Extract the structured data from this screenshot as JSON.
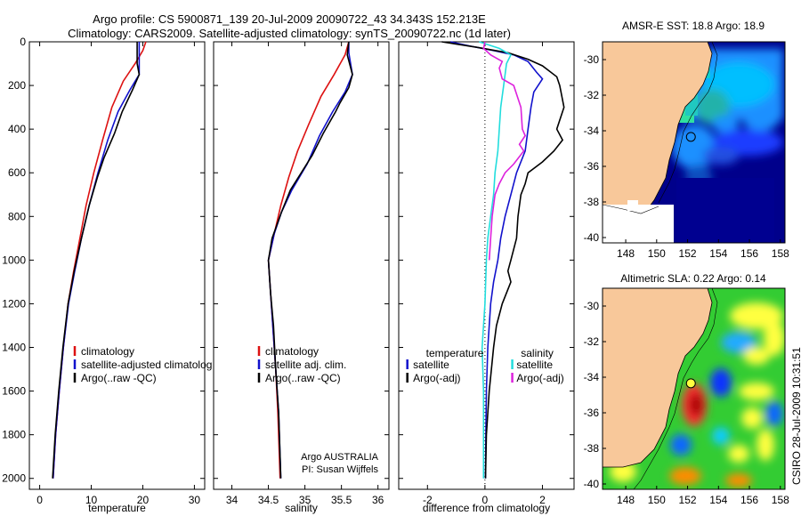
{
  "header": {
    "line1": "Argo profile: CS 5900871_139 20-Jul-2009 20090722_43 34.343S 152.213E",
    "line2": "Climatology: CARS2009. Satellite-adjusted climatology: synTS_20090722.nc (1d later)"
  },
  "footer_stamp": "CSIRO 28-Jul-2009 10:31:51",
  "colors": {
    "red": "#dd1111",
    "blue": "#1111cc",
    "black": "#000000",
    "cyan": "#22dddd",
    "magenta": "#dd22dd",
    "land": "#f8c89a"
  },
  "chart_data": [
    {
      "id": "temperature",
      "type": "line",
      "xlabel": "temperature",
      "ylabel": "",
      "xlim": [
        -2,
        32
      ],
      "ylim": [
        2050,
        0
      ],
      "xticks": [
        0,
        10,
        20,
        30
      ],
      "yticks": [
        0,
        200,
        400,
        600,
        800,
        1000,
        1200,
        1400,
        1600,
        1800,
        2000
      ],
      "legend": [
        "climatology",
        "satellite-adjusted climatolog",
        "Argo(..raw -QC)"
      ],
      "series": [
        {
          "name": "climatology",
          "color": "red",
          "points": [
            [
              20.6,
              0
            ],
            [
              20.0,
              40
            ],
            [
              18.5,
              100
            ],
            [
              16.2,
              180
            ],
            [
              14.0,
              300
            ],
            [
              12.2,
              450
            ],
            [
              10.5,
              600
            ],
            [
              9.0,
              750
            ],
            [
              7.8,
              900
            ],
            [
              6.6,
              1050
            ],
            [
              5.5,
              1200
            ],
            [
              4.6,
              1400
            ],
            [
              3.8,
              1600
            ],
            [
              3.1,
              1800
            ],
            [
              2.6,
              2000
            ]
          ]
        },
        {
          "name": "satellite-adjusted climatology",
          "color": "blue",
          "points": [
            [
              19.3,
              0
            ],
            [
              19.3,
              60
            ],
            [
              19.3,
              150
            ],
            [
              17.5,
              220
            ],
            [
              15.2,
              320
            ],
            [
              13.2,
              450
            ],
            [
              11.3,
              600
            ],
            [
              9.6,
              750
            ],
            [
              8.1,
              900
            ],
            [
              6.8,
              1050
            ],
            [
              5.6,
              1200
            ],
            [
              4.6,
              1400
            ],
            [
              3.8,
              1600
            ],
            [
              3.1,
              1800
            ],
            [
              2.6,
              2000
            ]
          ]
        },
        {
          "name": "Argo(..raw -QC)",
          "color": "black",
          "points": [
            [
              18.9,
              0
            ],
            [
              18.9,
              100
            ],
            [
              19.3,
              150
            ],
            [
              18.0,
              220
            ],
            [
              16.0,
              320
            ],
            [
              14.5,
              420
            ],
            [
              12.5,
              530
            ],
            [
              11.2,
              620
            ],
            [
              9.6,
              750
            ],
            [
              8.1,
              900
            ],
            [
              6.7,
              1050
            ],
            [
              5.5,
              1200
            ],
            [
              4.5,
              1400
            ],
            [
              3.7,
              1600
            ],
            [
              3.0,
              1800
            ],
            [
              2.5,
              2000
            ]
          ]
        }
      ]
    },
    {
      "id": "salinity",
      "type": "line",
      "xlabel": "salinity",
      "ylabel": "",
      "xlim": [
        33.75,
        36.15
      ],
      "ylim": [
        2050,
        0
      ],
      "xticks": [
        34,
        34.5,
        35,
        35.5,
        36
      ],
      "xtick_labels": [
        "34",
        "34.5",
        "35",
        "35.5",
        "36"
      ],
      "yticks": [
        0,
        200,
        400,
        600,
        800,
        1000,
        1200,
        1400,
        1600,
        1800,
        2000
      ],
      "legend": [
        "climatology",
        "satellite adj. clim.",
        "Argo(..raw -QC)"
      ],
      "annotations": [
        "Argo AUSTRALIA",
        "PI: Susan Wijffels"
      ],
      "series": [
        {
          "name": "climatology",
          "color": "red",
          "points": [
            [
              35.6,
              0
            ],
            [
              35.55,
              60
            ],
            [
              35.4,
              150
            ],
            [
              35.22,
              250
            ],
            [
              35.05,
              380
            ],
            [
              34.9,
              500
            ],
            [
              34.78,
              620
            ],
            [
              34.67,
              750
            ],
            [
              34.58,
              880
            ],
            [
              34.5,
              1000
            ],
            [
              34.52,
              1100
            ],
            [
              34.56,
              1300
            ],
            [
              34.6,
              1500
            ],
            [
              34.63,
              1700
            ],
            [
              34.66,
              2000
            ]
          ]
        },
        {
          "name": "satellite adj. clim.",
          "color": "blue",
          "points": [
            [
              35.6,
              0
            ],
            [
              35.6,
              50
            ],
            [
              35.65,
              150
            ],
            [
              35.55,
              230
            ],
            [
              35.38,
              320
            ],
            [
              35.2,
              430
            ],
            [
              35.03,
              560
            ],
            [
              34.82,
              680
            ],
            [
              34.68,
              780
            ],
            [
              34.58,
              880
            ],
            [
              34.5,
              1000
            ],
            [
              34.52,
              1100
            ],
            [
              34.56,
              1300
            ],
            [
              34.6,
              1500
            ],
            [
              34.64,
              1700
            ],
            [
              34.67,
              2000
            ]
          ]
        },
        {
          "name": "Argo(..raw -QC)",
          "color": "black",
          "points": [
            [
              35.6,
              0
            ],
            [
              35.58,
              60
            ],
            [
              35.65,
              150
            ],
            [
              35.6,
              210
            ],
            [
              35.48,
              280
            ],
            [
              35.42,
              320
            ],
            [
              35.25,
              420
            ],
            [
              35.1,
              520
            ],
            [
              34.95,
              600
            ],
            [
              34.8,
              680
            ],
            [
              34.68,
              780
            ],
            [
              34.55,
              900
            ],
            [
              34.5,
              1000
            ],
            [
              34.53,
              1150
            ],
            [
              34.57,
              1300
            ],
            [
              34.6,
              1500
            ],
            [
              34.64,
              1700
            ],
            [
              34.67,
              2000
            ]
          ]
        }
      ]
    },
    {
      "id": "difference",
      "type": "line",
      "xlabel": "difference from climatology",
      "ylabel": "",
      "xlim": [
        -3,
        3.1
      ],
      "ylim": [
        2050,
        0
      ],
      "xticks": [
        -2,
        0,
        2
      ],
      "yticks": [
        0,
        200,
        400,
        600,
        800,
        1000,
        1200,
        1400,
        1600,
        1800,
        2000
      ],
      "legend_temperature_heading": "temperature",
      "legend_salinity_heading": "salinity",
      "legend_temperature": [
        "satellite",
        "Argo(-adj)"
      ],
      "legend_salinity": [
        "satellite",
        "Argo(-adj)"
      ],
      "series": [
        {
          "name": "temperature satellite",
          "color": "blue",
          "points": [
            [
              -1.2,
              0
            ],
            [
              -0.5,
              20
            ],
            [
              0.3,
              40
            ],
            [
              1.0,
              60
            ],
            [
              1.5,
              90
            ],
            [
              1.8,
              140
            ],
            [
              2.0,
              170
            ],
            [
              1.7,
              230
            ],
            [
              1.6,
              300
            ],
            [
              1.5,
              400
            ],
            [
              1.4,
              500
            ],
            [
              1.1,
              600
            ],
            [
              0.9,
              700
            ],
            [
              0.7,
              800
            ],
            [
              0.55,
              900
            ],
            [
              0.45,
              1000
            ],
            [
              0.3,
              1100
            ],
            [
              0.2,
              1200
            ],
            [
              0.1,
              1400
            ],
            [
              0.05,
              1600
            ],
            [
              0.03,
              1800
            ],
            [
              0.02,
              2000
            ]
          ]
        },
        {
          "name": "temperature Argo(-adj)",
          "color": "black",
          "points": [
            [
              -1.5,
              0
            ],
            [
              -0.3,
              25
            ],
            [
              0.8,
              50
            ],
            [
              1.5,
              80
            ],
            [
              2.0,
              110
            ],
            [
              2.5,
              160
            ],
            [
              2.6,
              200
            ],
            [
              2.75,
              300
            ],
            [
              2.5,
              400
            ],
            [
              2.7,
              450
            ],
            [
              2.4,
              500
            ],
            [
              2.0,
              550
            ],
            [
              1.5,
              600
            ],
            [
              1.4,
              650
            ],
            [
              1.25,
              700
            ],
            [
              1.15,
              800
            ],
            [
              1.1,
              900
            ],
            [
              0.9,
              1000
            ],
            [
              0.8,
              1050
            ],
            [
              0.9,
              1100
            ],
            [
              0.6,
              1200
            ],
            [
              0.4,
              1300
            ],
            [
              0.3,
              1400
            ],
            [
              0.15,
              1600
            ],
            [
              0.05,
              1800
            ],
            [
              0.02,
              2000
            ]
          ]
        },
        {
          "name": "salinity satellite",
          "color": "cyan",
          "points": [
            [
              -0.2,
              0
            ],
            [
              0.5,
              30
            ],
            [
              0.9,
              60
            ],
            [
              0.75,
              100
            ],
            [
              0.65,
              200
            ],
            [
              0.55,
              300
            ],
            [
              0.5,
              400
            ],
            [
              0.45,
              500
            ],
            [
              0.35,
              600
            ],
            [
              0.3,
              700
            ],
            [
              0.2,
              800
            ],
            [
              0.1,
              900
            ],
            [
              0.05,
              1000
            ],
            [
              0.0,
              1200
            ],
            [
              -0.1,
              1400
            ],
            [
              -0.05,
              1600
            ],
            [
              -0.05,
              1800
            ],
            [
              -0.05,
              2000
            ]
          ]
        },
        {
          "name": "salinity Argo(-adj)",
          "color": "magenta",
          "points": [
            [
              0.0,
              0
            ],
            [
              -0.05,
              30
            ],
            [
              0.2,
              60
            ],
            [
              0.6,
              90
            ],
            [
              0.5,
              120
            ],
            [
              0.6,
              170
            ],
            [
              1.0,
              200
            ],
            [
              1.25,
              300
            ],
            [
              1.3,
              400
            ],
            [
              1.4,
              430
            ],
            [
              1.2,
              470
            ],
            [
              1.35,
              500
            ],
            [
              1.0,
              560
            ],
            [
              0.7,
              600
            ],
            [
              0.5,
              650
            ],
            [
              0.35,
              700
            ],
            [
              0.3,
              750
            ],
            [
              0.25,
              800
            ],
            [
              0.2,
              900
            ],
            [
              0.15,
              1000
            ]
          ]
        }
      ]
    },
    {
      "id": "sst_map",
      "type": "heatmap",
      "title": "AMSR-E SST: 18.8  Argo: 18.9",
      "xlim": [
        146.5,
        158.3
      ],
      "ylim": [
        -40.3,
        -29
      ],
      "xticks": [
        148,
        150,
        152,
        154,
        156,
        158
      ],
      "yticks": [
        -30,
        -32,
        -34,
        -36,
        -38,
        -40
      ],
      "argo_position": [
        152.213,
        -34.343
      ]
    },
    {
      "id": "sla_map",
      "type": "heatmap",
      "title": "Altimetric SLA: 0.22  Argo: 0.14",
      "xlim": [
        146.5,
        158.3
      ],
      "ylim": [
        -40.3,
        -29
      ],
      "xticks": [
        148,
        150,
        152,
        154,
        156,
        158
      ],
      "yticks": [
        -30,
        -32,
        -34,
        -36,
        -38,
        -40
      ],
      "argo_position": [
        152.213,
        -34.343
      ]
    }
  ]
}
